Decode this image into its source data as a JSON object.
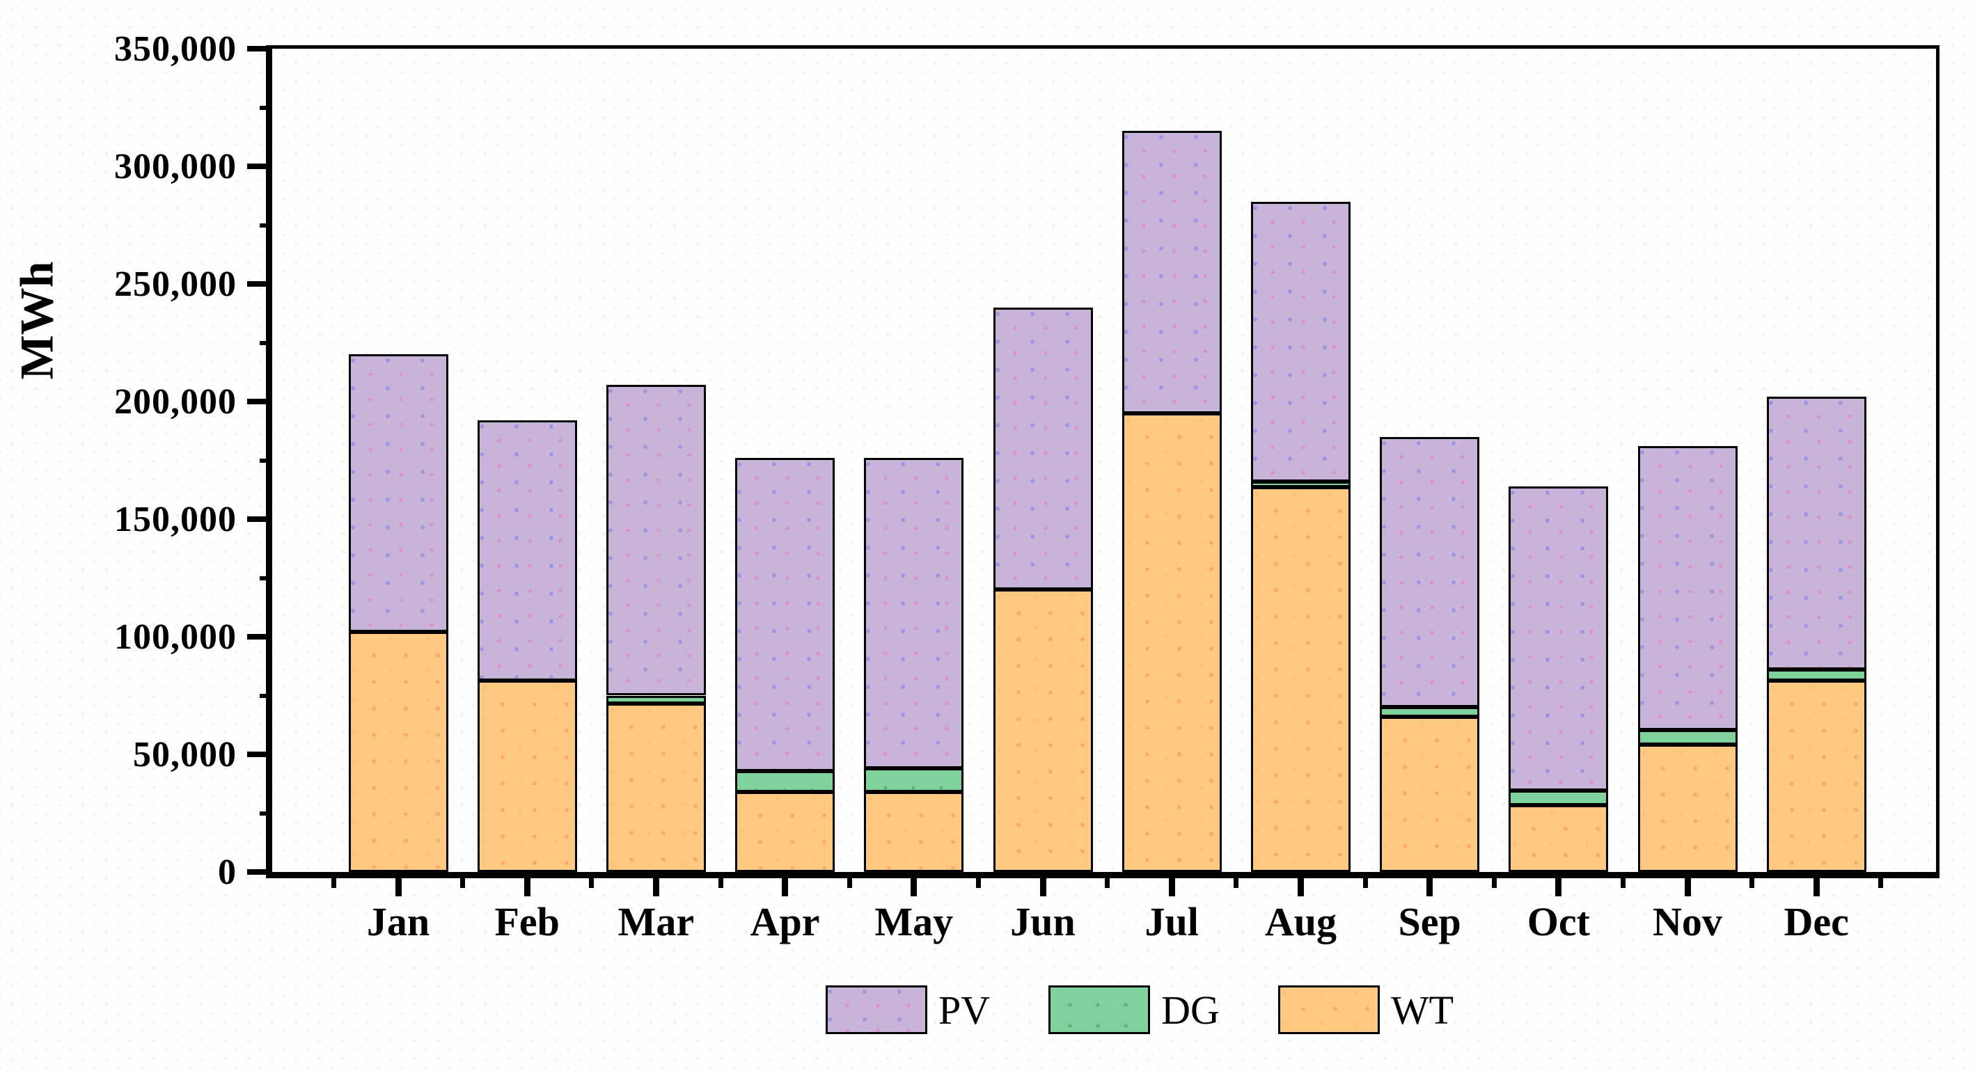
{
  "figure": {
    "ylabel": "MWh",
    "y_axis": {
      "min": 0,
      "max": 350000,
      "major_step": 50000,
      "minor_step": 25000,
      "tick_labels": [
        "0",
        "50,000",
        "100,000",
        "150,000",
        "200,000",
        "250,000",
        "300,000",
        "350,000"
      ]
    },
    "legend": [
      {
        "label": "PV",
        "color": "#c8b3d9"
      },
      {
        "label": "DG",
        "color": "#7fd29b"
      },
      {
        "label": "WT",
        "color": "#fdc980"
      }
    ]
  },
  "chart_data": {
    "type": "bar",
    "stacked": true,
    "title": "",
    "xlabel": "",
    "ylabel": "MWh",
    "ylim": [
      0,
      350000
    ],
    "grid": false,
    "legend_position": "bottom",
    "categories": [
      "Jan",
      "Feb",
      "Mar",
      "Apr",
      "May",
      "Jun",
      "Jul",
      "Aug",
      "Sep",
      "Oct",
      "Nov",
      "Dec"
    ],
    "series": [
      {
        "name": "WT",
        "color": "#fdc980",
        "values": [
          102000,
          81500,
          71500,
          34000,
          34000,
          120000,
          195000,
          163500,
          66000,
          28500,
          54000,
          81500
        ]
      },
      {
        "name": "DG",
        "color": "#7fd29b",
        "values": [
          0,
          0,
          3500,
          9000,
          10000,
          0,
          0,
          2500,
          4000,
          6000,
          6500,
          4500
        ]
      },
      {
        "name": "PV",
        "color": "#c8b3d9",
        "values": [
          118000,
          110500,
          132000,
          133000,
          132000,
          120000,
          120000,
          119000,
          115000,
          129500,
          120500,
          116000
        ]
      }
    ],
    "totals": [
      220000,
      192000,
      207000,
      176000,
      176000,
      240000,
      315000,
      285000,
      185000,
      164000,
      181000,
      202000
    ]
  }
}
